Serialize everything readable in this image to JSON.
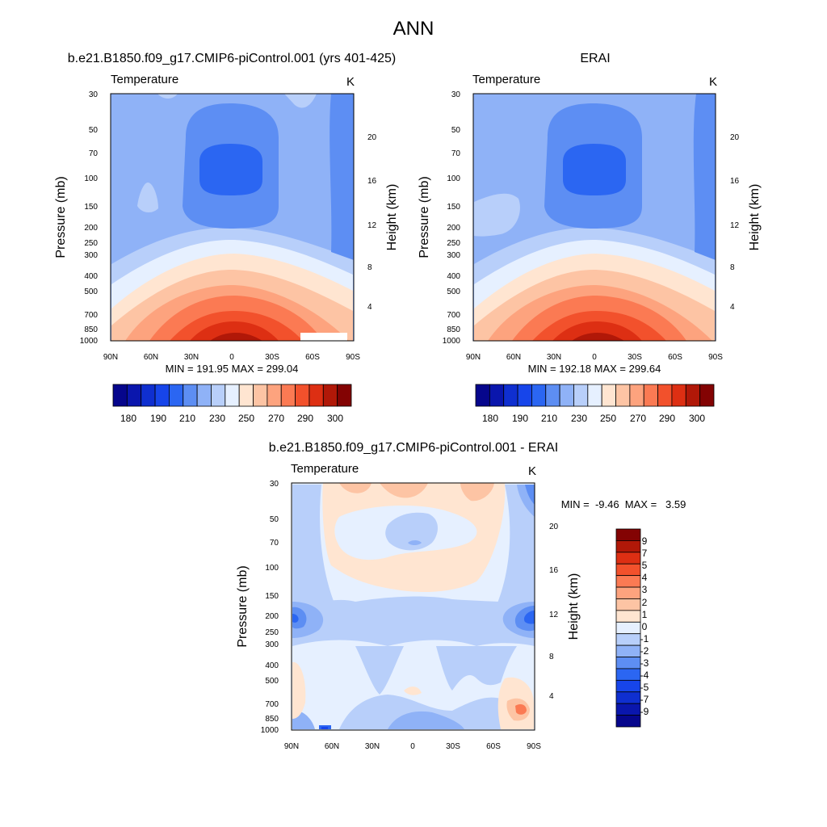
{
  "page": {
    "title": "ANN"
  },
  "colors": {
    "blue12": [
      "#06068c",
      "#0a16ad",
      "#0f2fd0",
      "#1745ea",
      "#2b66f2",
      "#5d8ef3",
      "#8fb2f7",
      "#b8cffa",
      "#e6f0ff",
      "#ffe5d1",
      "#fdc4a4",
      "#fda37e",
      "#fb7a53",
      "#f2512c",
      "#dd2f13",
      "#b11808",
      "#830303"
    ]
  },
  "chart_data": [
    {
      "type": "contour",
      "title": "b.e21.B1850.f09_g17.CMIP6-piControl.001 (yrs 401-425)",
      "variable": "Temperature",
      "units": "K",
      "ylabel": "Pressure (mb)",
      "ylabel_right": "Height (km)",
      "x_ticks": [
        "90N",
        "60N",
        "30N",
        "0",
        "30S",
        "60S",
        "90S"
      ],
      "y_ticks": [
        "30",
        "50",
        "70",
        "100",
        "150",
        "200",
        "250",
        "300",
        "400",
        "500",
        "700",
        "850",
        "1000"
      ],
      "y_right_ticks": [
        "20",
        "16",
        "12",
        "8",
        "4"
      ],
      "min": 191.95,
      "max": 299.04,
      "stats_text": "MIN = 191.95  MAX = 299.04",
      "colorbar_labels": [
        "180",
        "190",
        "210",
        "230",
        "250",
        "270",
        "290",
        "300"
      ]
    },
    {
      "type": "contour",
      "title": "ERAI",
      "variable": "Temperature",
      "units": "K",
      "ylabel": "Pressure (mb)",
      "ylabel_right": "Height (km)",
      "x_ticks": [
        "90N",
        "60N",
        "30N",
        "0",
        "30S",
        "60S",
        "90S"
      ],
      "y_ticks": [
        "30",
        "50",
        "70",
        "100",
        "150",
        "200",
        "250",
        "300",
        "400",
        "500",
        "700",
        "850",
        "1000"
      ],
      "y_right_ticks": [
        "20",
        "16",
        "12",
        "8",
        "4"
      ],
      "min": 192.18,
      "max": 299.64,
      "stats_text": "MIN = 192.18  MAX = 299.64",
      "colorbar_labels": [
        "180",
        "190",
        "210",
        "230",
        "250",
        "270",
        "290",
        "300"
      ]
    },
    {
      "type": "contour",
      "title": "b.e21.B1850.f09_g17.CMIP6-piControl.001 - ERAI",
      "variable": "Temperature",
      "units": "K",
      "ylabel": "Pressure (mb)",
      "ylabel_right": "Height (km)",
      "x_ticks": [
        "90N",
        "60N",
        "30N",
        "0",
        "30S",
        "60S",
        "90S"
      ],
      "y_ticks": [
        "30",
        "50",
        "70",
        "100",
        "150",
        "200",
        "250",
        "300",
        "400",
        "500",
        "700",
        "850",
        "1000"
      ],
      "y_right_ticks": [
        "20",
        "16",
        "12",
        "8",
        "4"
      ],
      "min": -9.46,
      "max": 3.59,
      "stats_text": "MIN =  -9.46  MAX =   3.59",
      "colorbar_labels": [
        "9",
        "7",
        "5",
        "4",
        "3",
        "2",
        "1",
        "0",
        "-1",
        "-2",
        "-3",
        "-4",
        "-5",
        "-7",
        "-9"
      ]
    }
  ]
}
